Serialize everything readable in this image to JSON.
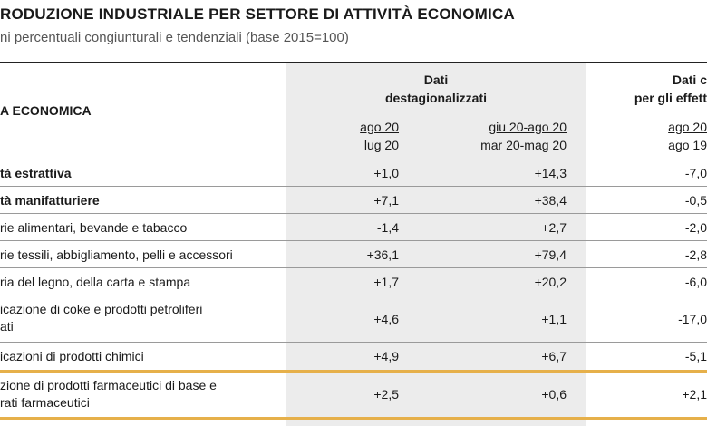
{
  "title": "RODUZIONE INDUSTRIALE PER SETTORE DI ATTIVITÀ ECONOMICA",
  "subtitle": "ni percentuali congiunturali e tendenziali (base 2015=100)",
  "header": {
    "group1_line1": "Dati",
    "group1_line2": "destagionalizzati",
    "group2_line1": "Dati c",
    "group2_line2": "per gli effett",
    "row_label": "A ECONOMICA",
    "col1_top": "ago 20",
    "col1_bottom": "lug 20",
    "col2_top": "giu 20-ago 20",
    "col2_bottom": "mar 20-mag 20",
    "col3_top": "ago 20",
    "col3_bottom": "ago 19"
  },
  "rows": [
    {
      "label": "tà estrattiva",
      "bold": true,
      "v1": "+1,0",
      "v2": "+14,3",
      "v3": "-7,0"
    },
    {
      "label": "tà manifatturiere",
      "bold": true,
      "v1": "+7,1",
      "v2": "+38,4",
      "v3": "-0,5"
    },
    {
      "label": "rie alimentari, bevande e tabacco",
      "bold": false,
      "v1": "-1,4",
      "v2": "+2,7",
      "v3": "-2,0"
    },
    {
      "label": "rie tessili, abbigliamento, pelli e accessori",
      "bold": false,
      "v1": "+36,1",
      "v2": "+79,4",
      "v3": "-2,8"
    },
    {
      "label": "ria del legno, della carta e stampa",
      "bold": false,
      "v1": "+1,7",
      "v2": "+20,2",
      "v3": "-6,0"
    },
    {
      "label": "icazione di coke e prodotti petroliferi",
      "label2": "ati",
      "bold": false,
      "v1": "+4,6",
      "v2": "+1,1",
      "v3": "-17,0"
    },
    {
      "label": "icazioni di prodotti chimici",
      "bold": false,
      "v1": "+4,9",
      "v2": "+6,7",
      "v3": "-5,1"
    },
    {
      "label": "zione di prodotti farmaceutici di base e",
      "label2": "rati farmaceutici",
      "bold": false,
      "v1": "+2,5",
      "v2": "+0,6",
      "v3": "+2,1"
    }
  ]
}
